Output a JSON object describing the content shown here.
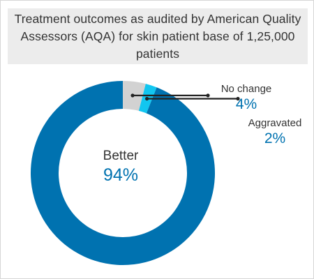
{
  "chart_data": {
    "type": "pie",
    "title": "Treatment outcomes as audited by American Quality Assessors (AQA) for skin patient base of 1,25,000 patients",
    "slices": [
      {
        "label": "Better",
        "value": 94,
        "display": "94%",
        "color": "#0072b0"
      },
      {
        "label": "No change",
        "value": 4,
        "display": "4%",
        "color": "#d2d2d2"
      },
      {
        "label": "Aggravated",
        "value": 2,
        "display": "2%",
        "color": "#12c6f0"
      }
    ],
    "label_color": "#333333",
    "value_color": "#0072b0",
    "leader_color": "#222222",
    "donut": true
  }
}
